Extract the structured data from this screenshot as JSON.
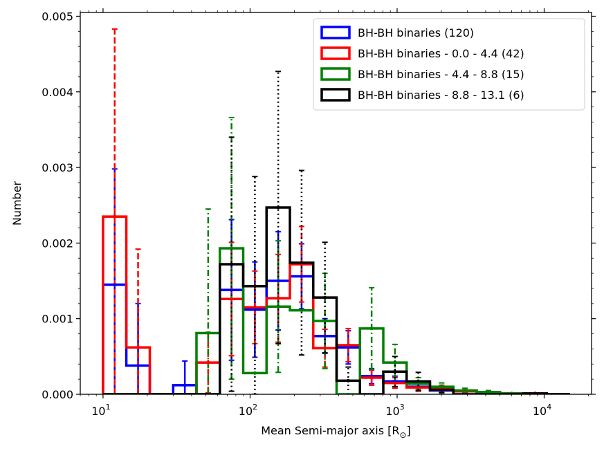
{
  "chart_data": {
    "type": "histogram",
    "xscale": "log",
    "xlabel": "Mean Semi-major axis [R",
    "xlabel_subscript": "⊙",
    "ylabel": "Number",
    "xlim": [
      7.0,
      21000
    ],
    "ylim": [
      0.0,
      0.00505
    ],
    "x_ticks": [
      {
        "base": "10",
        "exp": "1",
        "value": 10
      },
      {
        "base": "10",
        "exp": "2",
        "value": 100
      },
      {
        "base": "10",
        "exp": "3",
        "value": 1000
      },
      {
        "base": "10",
        "exp": "4",
        "value": 10000
      }
    ],
    "y_ticks": [
      {
        "value": 0.0,
        "label": "0.000"
      },
      {
        "value": 0.001,
        "label": "0.001"
      },
      {
        "value": 0.002,
        "label": "0.002"
      },
      {
        "value": 0.003,
        "label": "0.003"
      },
      {
        "value": 0.004,
        "label": "0.004"
      },
      {
        "value": 0.005,
        "label": "0.005"
      }
    ],
    "legend_position": "top-right",
    "bin_log_step": 0.1584,
    "series": [
      {
        "name": "BH-BH binaries (120)",
        "color": "#0000ff",
        "dash": "solid",
        "bins": [
          {
            "left": 10,
            "right": 14.4,
            "value": 0.00145,
            "err": 0.00153
          },
          {
            "left": 14.4,
            "right": 20.8,
            "value": 0.00038,
            "err": 0.00082
          },
          {
            "left": 20.8,
            "right": 30.0,
            "value": 0.0,
            "err": 0.0
          },
          {
            "left": 30.0,
            "right": 43.2,
            "value": 0.00012,
            "err": 0.00032
          },
          {
            "left": 43.2,
            "right": 62.3,
            "value": 0.0,
            "err": 0.0
          },
          {
            "left": 62.3,
            "right": 89.8,
            "value": 0.00138,
            "err": 0.00093
          },
          {
            "left": 89.8,
            "right": 129.4,
            "value": 0.00112,
            "err": 0.00063
          },
          {
            "left": 129.4,
            "right": 186.6,
            "value": 0.0015,
            "err": 0.00065
          },
          {
            "left": 186.6,
            "right": 268.9,
            "value": 0.00156,
            "err": 0.00043
          },
          {
            "left": 268.9,
            "right": 387.6,
            "value": 0.00077,
            "err": 0.00023
          },
          {
            "left": 387.6,
            "right": 558.7,
            "value": 0.00062,
            "err": 0.00022
          },
          {
            "left": 558.7,
            "right": 805.3,
            "value": 0.00024,
            "err": 0.0001
          },
          {
            "left": 805.3,
            "right": 1160.7,
            "value": 0.00017,
            "err": 7e-05
          },
          {
            "left": 1160.7,
            "right": 1673.0,
            "value": 0.0001,
            "err": 5e-05
          },
          {
            "left": 1673.0,
            "right": 2411.5,
            "value": 5e-05,
            "err": 3e-05
          },
          {
            "left": 2411.5,
            "right": 3475.8,
            "value": 4e-05,
            "err": 2e-05
          },
          {
            "left": 3475.8,
            "right": 5009.9,
            "value": 2e-05,
            "err": 1e-05
          },
          {
            "left": 5009.9,
            "right": 7221.1,
            "value": 1e-05,
            "err": 5e-06
          },
          {
            "left": 7221.1,
            "right": 10408.3,
            "value": 1e-05,
            "err": 5e-06
          },
          {
            "left": 10408.3,
            "right": 15002.3,
            "value": 0.0,
            "err": 0.0
          }
        ]
      },
      {
        "name": "BH-BH binaries - 0.0 - 4.4 (42)",
        "color": "#ff0000",
        "dash": "dashed",
        "bins": [
          {
            "left": 10,
            "right": 14.4,
            "value": 0.00235,
            "err": 0.00248
          },
          {
            "left": 14.4,
            "right": 20.8,
            "value": 0.00062,
            "err": 0.0013
          },
          {
            "left": 20.8,
            "right": 30.0,
            "value": 0.0,
            "err": 0.0
          },
          {
            "left": 30.0,
            "right": 43.2,
            "value": 0.0,
            "err": 0.0
          },
          {
            "left": 43.2,
            "right": 62.3,
            "value": 0.00042,
            "err": 0.0004
          },
          {
            "left": 62.3,
            "right": 89.8,
            "value": 0.00126,
            "err": 0.00075
          },
          {
            "left": 89.8,
            "right": 129.4,
            "value": 0.00115,
            "err": 0.00048
          },
          {
            "left": 129.4,
            "right": 186.6,
            "value": 0.00127,
            "err": 0.00058
          },
          {
            "left": 186.6,
            "right": 268.9,
            "value": 0.00172,
            "err": 0.0005
          },
          {
            "left": 268.9,
            "right": 387.6,
            "value": 0.00061,
            "err": 0.00025
          },
          {
            "left": 387.6,
            "right": 558.7,
            "value": 0.00065,
            "err": 0.00022
          },
          {
            "left": 558.7,
            "right": 805.3,
            "value": 0.00022,
            "err": 0.0001
          },
          {
            "left": 805.3,
            "right": 1160.7,
            "value": 0.00015,
            "err": 7e-05
          },
          {
            "left": 1160.7,
            "right": 1673.0,
            "value": 9e-05,
            "err": 5e-05
          },
          {
            "left": 1673.0,
            "right": 2411.5,
            "value": 8e-05,
            "err": 4e-05
          },
          {
            "left": 2411.5,
            "right": 3475.8,
            "value": 4e-05,
            "err": 2e-05
          },
          {
            "left": 3475.8,
            "right": 5009.9,
            "value": 2e-05,
            "err": 1e-05
          },
          {
            "left": 5009.9,
            "right": 7221.1,
            "value": 1e-05,
            "err": 5e-06
          },
          {
            "left": 7221.1,
            "right": 10408.3,
            "value": 1e-05,
            "err": 5e-06
          },
          {
            "left": 10408.3,
            "right": 15002.3,
            "value": 0.0,
            "err": 0.0
          }
        ]
      },
      {
        "name": "BH-BH binaries - 4.4 - 8.8 (15)",
        "color": "#008000",
        "dash": "dashdot",
        "bins": [
          {
            "left": 10,
            "right": 14.4,
            "value": 0.0,
            "err": 0.0
          },
          {
            "left": 14.4,
            "right": 20.8,
            "value": 0.0,
            "err": 0.0
          },
          {
            "left": 20.8,
            "right": 30.0,
            "value": 0.0,
            "err": 0.0
          },
          {
            "left": 30.0,
            "right": 43.2,
            "value": 0.0,
            "err": 0.0
          },
          {
            "left": 43.2,
            "right": 62.3,
            "value": 0.00081,
            "err": 0.00164
          },
          {
            "left": 62.3,
            "right": 89.8,
            "value": 0.00193,
            "err": 0.00173
          },
          {
            "left": 89.8,
            "right": 129.4,
            "value": 0.00028,
            "err": 0.0
          },
          {
            "left": 129.4,
            "right": 186.6,
            "value": 0.00116,
            "err": 0.00087
          },
          {
            "left": 186.6,
            "right": 268.9,
            "value": 0.00111,
            "err": 0.0
          },
          {
            "left": 268.9,
            "right": 387.6,
            "value": 0.00097,
            "err": 0.00063
          },
          {
            "left": 387.6,
            "right": 558.7,
            "value": 0.0,
            "err": 0.0
          },
          {
            "left": 558.7,
            "right": 805.3,
            "value": 0.00087,
            "err": 0.00054
          },
          {
            "left": 805.3,
            "right": 1160.7,
            "value": 0.00042,
            "err": 0.00024
          },
          {
            "left": 1160.7,
            "right": 1673.0,
            "value": 0.00014,
            "err": 8e-05
          },
          {
            "left": 1673.0,
            "right": 2411.5,
            "value": 0.0001,
            "err": 5e-05
          },
          {
            "left": 2411.5,
            "right": 3475.8,
            "value": 5e-05,
            "err": 3e-05
          },
          {
            "left": 3475.8,
            "right": 5009.9,
            "value": 3e-05,
            "err": 2e-05
          },
          {
            "left": 5009.9,
            "right": 7221.1,
            "value": 1e-05,
            "err": 5e-06
          },
          {
            "left": 7221.1,
            "right": 10408.3,
            "value": 0.0,
            "err": 0.0
          },
          {
            "left": 10408.3,
            "right": 15002.3,
            "value": 0.0,
            "err": 0.0
          }
        ]
      },
      {
        "name": "BH-BH binaries - 8.8 - 13.1 (6)",
        "color": "#000000",
        "dash": "dotted",
        "bins": [
          {
            "left": 10,
            "right": 14.4,
            "value": 0.0,
            "err": 0.0
          },
          {
            "left": 14.4,
            "right": 20.8,
            "value": 0.0,
            "err": 0.0
          },
          {
            "left": 20.8,
            "right": 30.0,
            "value": 0.0,
            "err": 0.0
          },
          {
            "left": 30.0,
            "right": 43.2,
            "value": 0.0,
            "err": 0.0
          },
          {
            "left": 43.2,
            "right": 62.3,
            "value": 0.0,
            "err": 0.0
          },
          {
            "left": 62.3,
            "right": 89.8,
            "value": 0.00172,
            "err": 0.00168
          },
          {
            "left": 89.8,
            "right": 129.4,
            "value": 0.00143,
            "err": 0.00145
          },
          {
            "left": 129.4,
            "right": 186.6,
            "value": 0.00247,
            "err": 0.0018
          },
          {
            "left": 186.6,
            "right": 268.9,
            "value": 0.00174,
            "err": 0.00122
          },
          {
            "left": 268.9,
            "right": 387.6,
            "value": 0.00128,
            "err": 0.00073
          },
          {
            "left": 387.6,
            "right": 558.7,
            "value": 0.00018,
            "err": 0.00018
          },
          {
            "left": 558.7,
            "right": 805.3,
            "value": 0.0,
            "err": 0.0
          },
          {
            "left": 805.3,
            "right": 1160.7,
            "value": 0.0003,
            "err": 0.0002
          },
          {
            "left": 1160.7,
            "right": 1673.0,
            "value": 0.00017,
            "err": 0.00012
          },
          {
            "left": 1673.0,
            "right": 2411.5,
            "value": 6e-05,
            "err": 4e-05
          },
          {
            "left": 2411.5,
            "right": 3475.8,
            "value": 0.0,
            "err": 0.0
          },
          {
            "left": 3475.8,
            "right": 5009.9,
            "value": 0.0,
            "err": 0.0
          },
          {
            "left": 5009.9,
            "right": 7221.1,
            "value": 0.0,
            "err": 0.0
          },
          {
            "left": 7221.1,
            "right": 10408.3,
            "value": 1e-05,
            "err": 5e-06
          },
          {
            "left": 10408.3,
            "right": 15002.3,
            "value": 0.0,
            "err": 0.0
          }
        ]
      }
    ]
  }
}
